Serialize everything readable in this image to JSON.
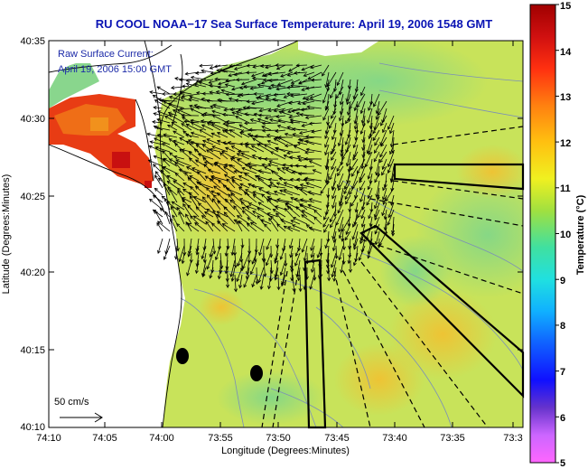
{
  "title": "RU COOL  NOAA−17  Sea Surface Temperature:  April 19, 2006 1548 GMT",
  "colors": {
    "title": "#0a14b4",
    "overlay_text": "#1c2aa8",
    "land": "#ffffff",
    "sea_base": "#c8e35a"
  },
  "legend": {
    "line1": "Raw Surface Current:",
    "line2": "April 19, 2006 15:00 GMT",
    "scale_label": "50 cm/s"
  },
  "axes": {
    "xlabel": "Longitude (Degrees:Minutes)",
    "ylabel": "Latitude (Degrees:Minutes)",
    "x_ticks": [
      "74:10",
      "74:05",
      "74:00",
      "73:55",
      "73:50",
      "73:45",
      "73:40",
      "73:35",
      "73:3"
    ],
    "y_ticks": [
      "40:35",
      "40:30",
      "40:25",
      "40:20",
      "40:15",
      "40:10"
    ]
  },
  "colorbar": {
    "label": "Temperature (°C)",
    "min": 5,
    "max": 15,
    "ticks": [
      "5",
      "6",
      "7",
      "8",
      "9",
      "10",
      "11",
      "12",
      "13",
      "14",
      "15"
    ]
  }
}
